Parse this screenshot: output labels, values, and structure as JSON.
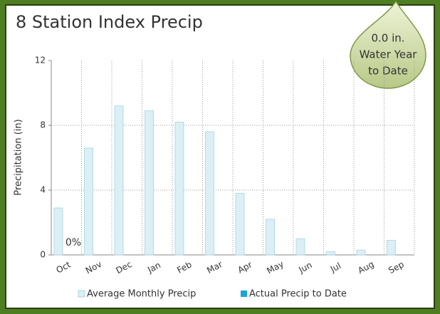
{
  "chart_data": {
    "type": "bar",
    "title": "8 Station Index Precip",
    "y_label": "Precipitation (in)",
    "badge_lines": [
      "0.0 in.",
      "Water Year",
      "to Date"
    ],
    "annotation": "0%",
    "categories": [
      "Oct",
      "Nov",
      "Dec",
      "Jan",
      "Feb",
      "Mar",
      "Apr",
      "May",
      "Jun",
      "Jul",
      "Aug",
      "Sep"
    ],
    "series": [
      {
        "name": "Average Monthly Precip",
        "color": "#dbeff5",
        "values": [
          2.9,
          6.6,
          9.2,
          8.9,
          8.2,
          7.6,
          3.8,
          2.2,
          1.0,
          0.2,
          0.3,
          0.9
        ]
      },
      {
        "name": "Actual Precip to Date",
        "color": "#1aa5d8",
        "values": [
          0,
          null,
          null,
          null,
          null,
          null,
          null,
          null,
          null,
          null,
          null,
          null
        ]
      }
    ],
    "ylim": [
      0,
      12
    ],
    "yticks": [
      0,
      4,
      8,
      12
    ],
    "grid": true
  }
}
